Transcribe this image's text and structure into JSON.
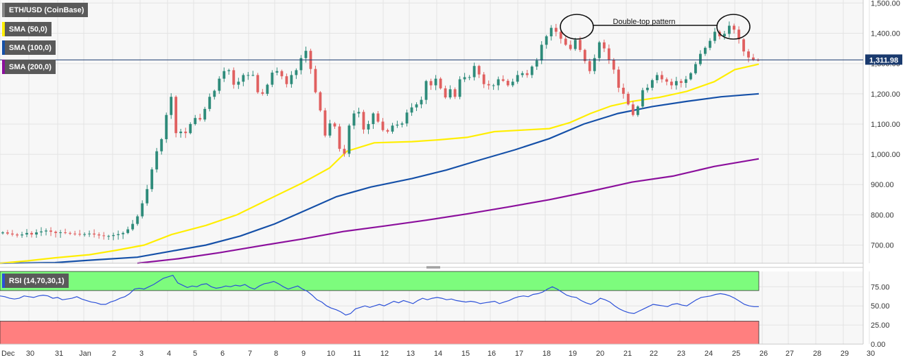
{
  "colors": {
    "bull": "#2e8b7a",
    "bear": "#e06060",
    "sma50": "#ffee00",
    "sma100": "#1550a8",
    "sma200": "#8b0f9c",
    "rsi_line": "#2a4fd8",
    "rsi_overbought_zone": "#7dfc7d",
    "rsi_oversold_zone": "#ff7f7f",
    "price_line": "#1a3a6e",
    "legend_bg": "#5a5a5a"
  },
  "legend": {
    "main": "ETH/USD (CoinBase)",
    "sma50": "SMA (50,0)",
    "sma100": "SMA (100,0)",
    "sma200": "SMA (200,0)",
    "rsi": "RSI (14,70,30,1)"
  },
  "annotation": {
    "text": "Double-top pattern"
  },
  "current_price": {
    "value": 1311.98,
    "label": "1,311.98"
  },
  "chart_data": [
    {
      "type": "candlestick",
      "title": "ETH/USD (CoinBase)",
      "ylim": [
        640,
        1510
      ],
      "y_ticks": [
        "700.00",
        "800.00",
        "900.00",
        "1,000.00",
        "1,100.00",
        "1,200.00",
        "1,300.00",
        "1,400.00",
        "1,500.00"
      ],
      "y_tick_values": [
        700,
        800,
        900,
        1000,
        1100,
        1200,
        1300,
        1400,
        1500
      ],
      "x_labels": [
        "Dec",
        "30",
        "31",
        "Jan",
        "2",
        "3",
        "4",
        "5",
        "6",
        "7",
        "8",
        "9",
        "10",
        "11",
        "12",
        "13",
        "14",
        "15",
        "16",
        "17",
        "18",
        "19",
        "20",
        "21",
        "22",
        "23",
        "24",
        "25",
        "26",
        "27",
        "28",
        "29",
        "30"
      ],
      "x_label_slots": [
        0,
        42,
        84,
        122,
        164,
        204,
        244,
        282,
        322,
        362,
        400,
        440,
        480,
        518,
        558,
        596,
        636,
        676,
        714,
        754,
        794,
        832,
        872,
        912,
        950,
        990,
        1030,
        1070,
        1110,
        1148,
        1188,
        1228,
        1266
      ],
      "close_series": [
        742,
        738,
        735,
        732,
        735,
        740,
        735,
        742,
        745,
        748,
        744,
        740,
        742,
        740,
        738,
        737,
        736,
        736,
        738,
        735,
        732,
        730,
        730,
        733,
        736,
        740,
        752,
        770,
        795,
        838,
        885,
        950,
        1010,
        1050,
        1130,
        1190,
        1070,
        1075,
        1070,
        1100,
        1120,
        1115,
        1150,
        1190,
        1210,
        1250,
        1275,
        1278,
        1230,
        1240,
        1262,
        1262,
        1262,
        1205,
        1200,
        1230,
        1270,
        1275,
        1258,
        1232,
        1262,
        1278,
        1318,
        1342,
        1282,
        1205,
        1145,
        1062,
        1102,
        1092,
        1018,
        1002,
        1095,
        1135,
        1140,
        1082,
        1100,
        1135,
        1108,
        1080,
        1075,
        1095,
        1098,
        1102,
        1138,
        1155,
        1165,
        1180,
        1242,
        1228,
        1250,
        1218,
        1188,
        1215,
        1190,
        1248,
        1255,
        1255,
        1292,
        1264,
        1232,
        1228,
        1228,
        1248,
        1243,
        1228,
        1240,
        1262,
        1268,
        1262,
        1290,
        1310,
        1362,
        1390,
        1418,
        1405,
        1382,
        1362,
        1348,
        1378,
        1345,
        1308,
        1275,
        1318,
        1370,
        1350,
        1312,
        1280,
        1220,
        1200,
        1165,
        1130,
        1158,
        1212,
        1220,
        1245,
        1262,
        1248,
        1240,
        1228,
        1242,
        1236,
        1248,
        1268,
        1298,
        1332,
        1352,
        1375,
        1405,
        1390,
        1398,
        1425,
        1412,
        1380,
        1340,
        1320,
        1312,
        1311.98
      ],
      "sma50": [
        [
          0,
          640
        ],
        [
          40,
          648
        ],
        [
          80,
          658
        ],
        [
          130,
          668
        ],
        [
          170,
          683
        ],
        [
          210,
          700
        ],
        [
          250,
          735
        ],
        [
          300,
          765
        ],
        [
          345,
          800
        ],
        [
          390,
          850
        ],
        [
          440,
          905
        ],
        [
          480,
          955
        ],
        [
          505,
          1010
        ],
        [
          545,
          1038
        ],
        [
          600,
          1042
        ],
        [
          640,
          1048
        ],
        [
          680,
          1056
        ],
        [
          720,
          1075
        ],
        [
          760,
          1080
        ],
        [
          800,
          1085
        ],
        [
          830,
          1105
        ],
        [
          860,
          1135
        ],
        [
          890,
          1160
        ],
        [
          920,
          1175
        ],
        [
          960,
          1188
        ],
        [
          1000,
          1208
        ],
        [
          1040,
          1240
        ],
        [
          1070,
          1280
        ],
        [
          1105,
          1298
        ]
      ],
      "sma100": [
        [
          0,
          640
        ],
        [
          80,
          642
        ],
        [
          130,
          650
        ],
        [
          200,
          660
        ],
        [
          250,
          680
        ],
        [
          300,
          700
        ],
        [
          350,
          730
        ],
        [
          400,
          770
        ],
        [
          450,
          820
        ],
        [
          490,
          860
        ],
        [
          540,
          892
        ],
        [
          600,
          920
        ],
        [
          650,
          948
        ],
        [
          700,
          982
        ],
        [
          750,
          1015
        ],
        [
          800,
          1052
        ],
        [
          850,
          1100
        ],
        [
          900,
          1135
        ],
        [
          950,
          1158
        ],
        [
          1000,
          1175
        ],
        [
          1050,
          1190
        ],
        [
          1105,
          1200
        ]
      ],
      "sma200": [
        [
          200,
          640
        ],
        [
          260,
          655
        ],
        [
          320,
          675
        ],
        [
          380,
          698
        ],
        [
          440,
          720
        ],
        [
          500,
          745
        ],
        [
          560,
          763
        ],
        [
          620,
          782
        ],
        [
          680,
          803
        ],
        [
          740,
          826
        ],
        [
          800,
          850
        ],
        [
          860,
          878
        ],
        [
          920,
          908
        ],
        [
          980,
          928
        ],
        [
          1040,
          960
        ],
        [
          1105,
          985
        ]
      ]
    },
    {
      "type": "line",
      "title": "RSI (14,70,30,1)",
      "ylim": [
        0,
        95
      ],
      "overbought": 70,
      "oversold": 30,
      "y_ticks": [
        "0.00",
        "25.00",
        "50.00",
        "75.00"
      ],
      "y_tick_values": [
        0,
        25,
        50,
        75
      ],
      "values": [
        63,
        62,
        60,
        59,
        60,
        63,
        62,
        61,
        63,
        64,
        63,
        60,
        61,
        58,
        59,
        60,
        62,
        59,
        57,
        55,
        54,
        52,
        52,
        55,
        57,
        60,
        62,
        66,
        72,
        73,
        72,
        75,
        78,
        82,
        86,
        88,
        90,
        80,
        77,
        74,
        76,
        75,
        78,
        79,
        75,
        73,
        74,
        76,
        75,
        77,
        76,
        78,
        74,
        72,
        76,
        79,
        80,
        82,
        79,
        75,
        72,
        74,
        76,
        72,
        69,
        64,
        58,
        55,
        50,
        47,
        45,
        42,
        38,
        40,
        46,
        48,
        50,
        48,
        50,
        52,
        50,
        53,
        56,
        54,
        57,
        55,
        53,
        57,
        60,
        58,
        60,
        61,
        60,
        58,
        59,
        57,
        56,
        55,
        56,
        55,
        53,
        54,
        55,
        56,
        53,
        55,
        57,
        60,
        62,
        63,
        62,
        65,
        66,
        68,
        72,
        75,
        72,
        68,
        64,
        62,
        61,
        57,
        54,
        52,
        55,
        60,
        58,
        55,
        50,
        46,
        43,
        41,
        40,
        43,
        46,
        49,
        52,
        51,
        50,
        49,
        52,
        53,
        51,
        50,
        54,
        58,
        61,
        62,
        63,
        65,
        66,
        65,
        63,
        60,
        56,
        52,
        50,
        49,
        49
      ],
      "x_start": 0,
      "x_end": 1105
    }
  ]
}
